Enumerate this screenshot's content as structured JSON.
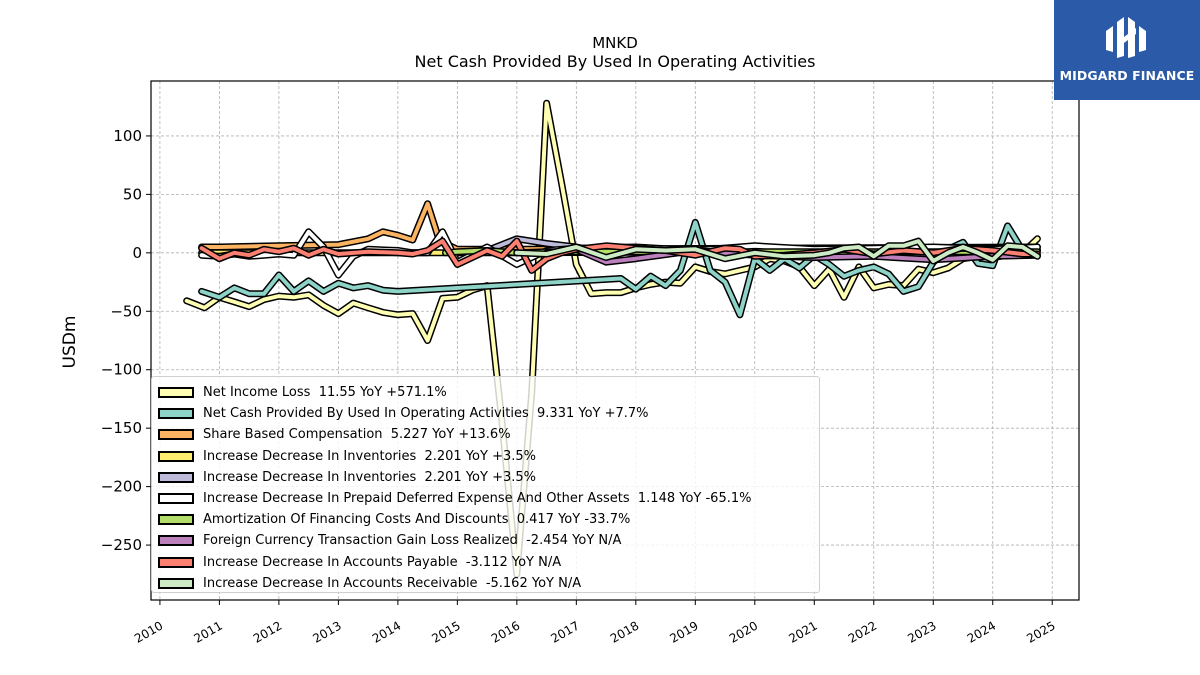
{
  "branding": {
    "name": "MIDGARD FINANCE",
    "logo_icon": "midgard-logo-icon",
    "color": "#2a5aa8"
  },
  "chart_data": {
    "type": "line",
    "title": "MNKD",
    "subtitle": "Net Cash Provided By Used In Operating Activities",
    "xlabel": "",
    "ylabel": "USDm",
    "xlim": [
      2009.85,
      2025.45
    ],
    "ylim": [
      -297,
      147
    ],
    "x_ticks": [
      "2010",
      "2011",
      "2012",
      "2013",
      "2014",
      "2015",
      "2016",
      "2017",
      "2018",
      "2019",
      "2020",
      "2021",
      "2022",
      "2023",
      "2024",
      "2025"
    ],
    "y_ticks": [
      "100",
      "50",
      "0",
      "−50",
      "−100",
      "−150",
      "−200",
      "−250"
    ],
    "y_tick_values": [
      100,
      50,
      0,
      -50,
      -100,
      -150,
      -200,
      -250
    ],
    "grid": true,
    "legend_position": "lower-left",
    "series": [
      {
        "name": "Net Income Loss",
        "legend": "Net Income Loss  11.55 YoY +571.1%",
        "color": "#ffffb3",
        "x": [
          2010.45,
          2010.75,
          2011.0,
          2011.25,
          2011.5,
          2011.75,
          2012.0,
          2012.25,
          2012.5,
          2012.75,
          2013.0,
          2013.25,
          2013.5,
          2013.75,
          2014.0,
          2014.25,
          2014.5,
          2014.75,
          2015.0,
          2015.25,
          2015.5,
          2015.75,
          2016.0,
          2016.25,
          2016.5,
          2016.75,
          2017.0,
          2017.25,
          2017.5,
          2017.75,
          2018.0,
          2018.25,
          2018.5,
          2018.75,
          2019.0,
          2019.25,
          2019.5,
          2019.75,
          2020.0,
          2020.25,
          2020.5,
          2020.75,
          2021.0,
          2021.25,
          2021.5,
          2021.75,
          2022.0,
          2022.25,
          2022.5,
          2022.75,
          2023.0,
          2023.25,
          2023.5,
          2023.75,
          2024.0,
          2024.25,
          2024.5,
          2024.75
        ],
        "y": [
          -41,
          -47,
          -38,
          -42,
          -46,
          -40,
          -37,
          -38,
          -36,
          -45,
          -52,
          -43,
          -47,
          -51,
          -53,
          -52,
          -75,
          -39,
          -38,
          -32,
          -28,
          -145,
          -275,
          -120,
          128,
          60,
          -10,
          -35,
          -34,
          -34,
          -30,
          -27,
          -25,
          -26,
          -12,
          -16,
          -18,
          -15,
          -12,
          -5,
          -7,
          -12,
          -28,
          -14,
          -38,
          -12,
          -30,
          -27,
          -28,
          -14,
          -17,
          -13,
          -5,
          -3,
          -4,
          -2,
          0,
          12
        ]
      },
      {
        "name": "Net Cash Provided By Used In Operating Activities",
        "legend": "Net Cash Provided By Used In Operating Activities  9.331 YoY +7.7%",
        "color": "#8dd3c7",
        "x": [
          2010.7,
          2011.0,
          2011.25,
          2011.5,
          2011.75,
          2012.0,
          2012.25,
          2012.5,
          2012.75,
          2013.0,
          2013.25,
          2013.5,
          2013.75,
          2014.0,
          2017.75,
          2018.0,
          2018.25,
          2018.5,
          2018.75,
          2019.0,
          2019.25,
          2019.5,
          2019.75,
          2020.0,
          2020.25,
          2020.5,
          2020.75,
          2021.0,
          2021.25,
          2021.5,
          2021.75,
          2022.0,
          2022.25,
          2022.5,
          2022.75,
          2023.0,
          2023.25,
          2023.5,
          2023.75,
          2024.0,
          2024.25,
          2024.5,
          2024.75
        ],
        "y": [
          -33,
          -38,
          -30,
          -35,
          -35,
          -19,
          -33,
          -24,
          -33,
          -26,
          -30,
          -28,
          -32,
          -33,
          -22,
          -31,
          -20,
          -28,
          -15,
          26,
          -15,
          -25,
          -53,
          -5,
          -15,
          -5,
          -13,
          -2,
          -10,
          -20,
          -15,
          -12,
          -18,
          -33,
          -29,
          -8,
          3,
          9,
          -9,
          -11,
          23,
          2,
          3
        ]
      },
      {
        "name": "Share Based Compensation",
        "legend": "Share Based Compensation  5.227 YoY +13.6%",
        "color": "#fdb462",
        "x": [
          2010.7,
          2011.0,
          2012.0,
          2013.0,
          2013.5,
          2013.75,
          2014.0,
          2014.25,
          2014.5,
          2014.7,
          2015.0,
          2016.0,
          2024.75
        ],
        "y": [
          5,
          5,
          6,
          7,
          12,
          18,
          15,
          11,
          42,
          10,
          3,
          3,
          5
        ]
      },
      {
        "name": "Increase Decrease In Inventories",
        "legend": "Increase Decrease In Inventories  2.201 YoY +3.5%",
        "color": "#ffed6f",
        "x": [
          2010.7,
          2015.0,
          2016.0,
          2024.75
        ],
        "y": [
          0,
          0,
          0,
          2
        ]
      },
      {
        "name": "Increase Decrease In Inventories",
        "legend": "Increase Decrease In Inventories  2.201 YoY +3.5%",
        "color": "#bebada",
        "x": [
          2015.0,
          2015.5,
          2016.0,
          2016.5,
          2017.0,
          2017.5,
          2018.0,
          2019.0,
          2020.0,
          2021.0,
          2022.0,
          2023.0,
          2024.0,
          2024.75
        ],
        "y": [
          0,
          2,
          12,
          8,
          5,
          0,
          4,
          2,
          3,
          0,
          4,
          3,
          4,
          2
        ]
      },
      {
        "name": "Increase Decrease In Prepaid Deferred Expense And Other Assets",
        "legend": "Increase Decrease In Prepaid Deferred Expense And Other Assets  1.148 YoY -65.1%",
        "color": "#ffffff",
        "x": [
          2010.7,
          2011.0,
          2011.25,
          2011.5,
          2011.75,
          2012.0,
          2012.25,
          2012.5,
          2012.75,
          2013.0,
          2013.25,
          2013.5,
          2014.0,
          2014.25,
          2014.5,
          2014.75,
          2015.0,
          2015.5,
          2016.0,
          2016.5,
          2017.0,
          2018.0,
          2019.0,
          2020.0,
          2021.0,
          2022.0,
          2023.0,
          2024.0,
          2024.75
        ],
        "y": [
          -2,
          -3,
          -1,
          -3,
          -2,
          -1,
          -2,
          18,
          5,
          -19,
          -3,
          3,
          2,
          0,
          0,
          18,
          -8,
          5,
          -10,
          2,
          4,
          5,
          2,
          6,
          3,
          4,
          5,
          3,
          5
        ]
      },
      {
        "name": "Amortization Of Financing Costs And Discounts",
        "legend": "Amortization Of Financing Costs And Discounts  0.417 YoY -33.7%",
        "color": "#b3de69",
        "x": [
          2014.8,
          2015.0,
          2015.5,
          2016.0,
          2016.5,
          2024.75
        ],
        "y": [
          0,
          1,
          2,
          0,
          1,
          1
        ]
      },
      {
        "name": "Foreign Currency Transaction Gain Loss Realized",
        "legend": "Foreign Currency Transaction Gain Loss Realized  -2.454 YoY N/A",
        "color": "#bc80bd",
        "x": [
          2016.5,
          2017.0,
          2017.5,
          2018.0,
          2019.0,
          2020.0,
          2021.0,
          2022.0,
          2023.0,
          2024.0,
          2024.75
        ],
        "y": [
          0,
          3,
          -8,
          -5,
          2,
          -2,
          -4,
          -3,
          -6,
          -3,
          -2
        ]
      },
      {
        "name": "Increase Decrease In Accounts Payable",
        "legend": "Increase Decrease In Accounts Payable  -3.112 YoY N/A",
        "color": "#fb8072",
        "x": [
          2010.7,
          2011.0,
          2011.25,
          2011.5,
          2011.75,
          2012.0,
          2012.25,
          2012.5,
          2012.75,
          2013.0,
          2013.5,
          2014.0,
          2014.25,
          2014.5,
          2014.75,
          2015.0,
          2015.5,
          2015.75,
          2016.0,
          2016.25,
          2016.5,
          2016.75,
          2017.0,
          2017.5,
          2018.0,
          2018.5,
          2019.0,
          2019.5,
          2019.75,
          2020.0,
          2020.5,
          2021.0,
          2021.5,
          2022.0,
          2022.5,
          2023.0,
          2023.5,
          2024.0,
          2024.5,
          2024.75
        ],
        "y": [
          4,
          -5,
          0,
          -2,
          3,
          1,
          4,
          -2,
          3,
          -1,
          1,
          0,
          -1,
          2,
          10,
          -10,
          2,
          -3,
          10,
          -15,
          -5,
          0,
          3,
          6,
          4,
          2,
          -2,
          4,
          3,
          -3,
          -2,
          0,
          3,
          -1,
          2,
          0,
          4,
          2,
          -1,
          -1
        ]
      },
      {
        "name": "Increase Decrease In Accounts Receivable",
        "legend": "Increase Decrease In Accounts Receivable  -5.162 YoY N/A",
        "color": "#ccebc5",
        "x": [
          2016.0,
          2016.5,
          2016.75,
          2017.0,
          2017.5,
          2018.0,
          2018.5,
          2019.0,
          2019.5,
          2020.0,
          2020.5,
          2021.0,
          2021.25,
          2021.5,
          2021.75,
          2022.0,
          2022.25,
          2022.5,
          2022.75,
          2023.0,
          2023.25,
          2023.5,
          2023.75,
          2024.0,
          2024.25,
          2024.5,
          2024.75
        ],
        "y": [
          0,
          -1,
          2,
          5,
          -4,
          3,
          2,
          3,
          -5,
          0,
          -3,
          -2,
          0,
          4,
          5,
          -3,
          6,
          6,
          10,
          -7,
          0,
          5,
          0,
          -6,
          6,
          5,
          -3
        ]
      }
    ]
  }
}
